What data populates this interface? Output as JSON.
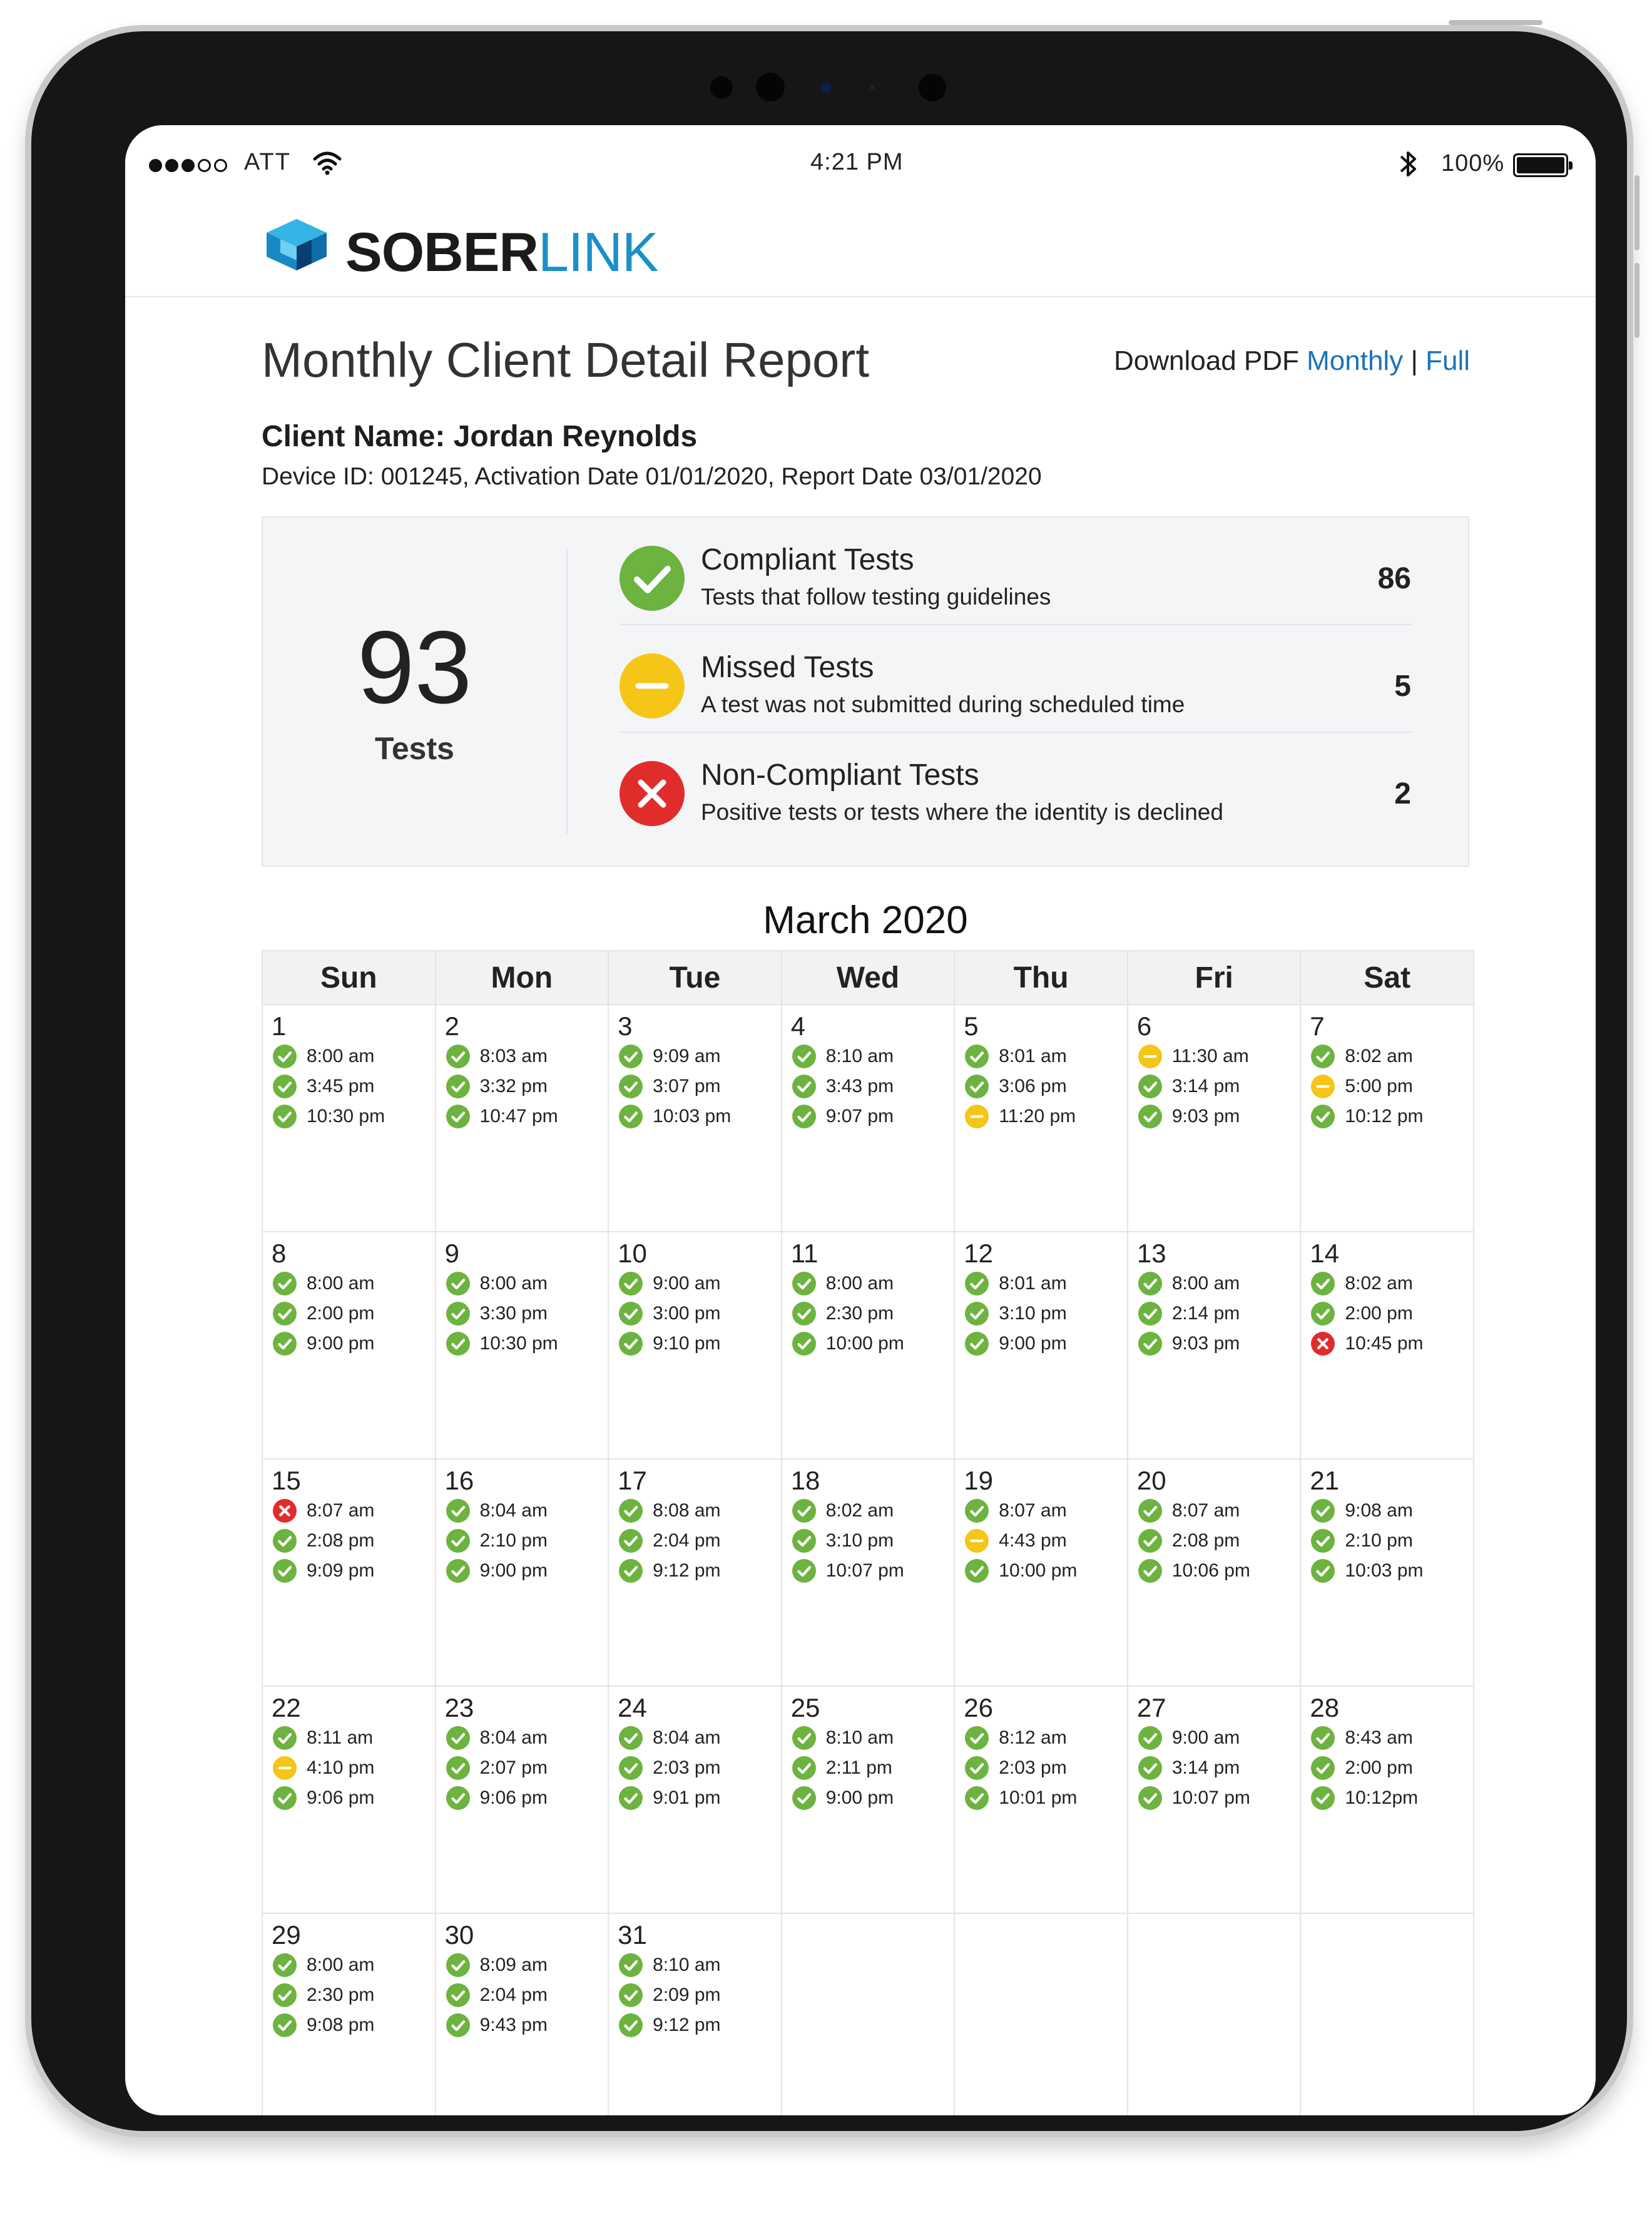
{
  "status_bar": {
    "carrier": "ATT",
    "time": "4:21 PM",
    "battery": "100%"
  },
  "header": {
    "logo_primary": "SOBER",
    "logo_secondary": "LINK"
  },
  "report": {
    "title": "Monthly Client Detail Report",
    "download_label": "Download PDF",
    "download_monthly": "Monthly",
    "download_separator": "|",
    "download_full": "Full",
    "client_name": "Client Name: Jordan Reynolds",
    "device_line": "Device ID: 001245, Activation Date 01/01/2020, Report Date 03/01/2020"
  },
  "summary": {
    "total": "93",
    "total_label": "Tests",
    "rows": [
      {
        "status": "compliant",
        "title": "Compliant Tests",
        "subtitle": "Tests that follow testing guidelines",
        "count": "86"
      },
      {
        "status": "missed",
        "title": "Missed Tests",
        "subtitle": "A test was not submitted during scheduled time",
        "count": "5"
      },
      {
        "status": "noncompliant",
        "title": "Non-Compliant Tests",
        "subtitle": "Positive tests or tests where the identity is declined",
        "count": "2"
      }
    ]
  },
  "colors": {
    "compliant": "#6db33f",
    "missed": "#f5c518",
    "noncompliant": "#e12c2c",
    "brand_blue": "#1a8fc9"
  },
  "calendar": {
    "title": "March 2020",
    "weekdays": [
      "Sun",
      "Mon",
      "Tue",
      "Wed",
      "Thu",
      "Fri",
      "Sat"
    ],
    "days": [
      {
        "day": "1",
        "tests": [
          {
            "time": "8:00 am",
            "status": "compliant"
          },
          {
            "time": "3:45 pm",
            "status": "compliant"
          },
          {
            "time": "10:30 pm",
            "status": "compliant"
          }
        ]
      },
      {
        "day": "2",
        "tests": [
          {
            "time": "8:03 am",
            "status": "compliant"
          },
          {
            "time": "3:32 pm",
            "status": "compliant"
          },
          {
            "time": "10:47 pm",
            "status": "compliant"
          }
        ]
      },
      {
        "day": "3",
        "tests": [
          {
            "time": "9:09 am",
            "status": "compliant"
          },
          {
            "time": "3:07 pm",
            "status": "compliant"
          },
          {
            "time": "10:03 pm",
            "status": "compliant"
          }
        ]
      },
      {
        "day": "4",
        "tests": [
          {
            "time": "8:10 am",
            "status": "compliant"
          },
          {
            "time": "3:43 pm",
            "status": "compliant"
          },
          {
            "time": "9:07 pm",
            "status": "compliant"
          }
        ]
      },
      {
        "day": "5",
        "tests": [
          {
            "time": "8:01 am",
            "status": "compliant"
          },
          {
            "time": "3:06 pm",
            "status": "compliant"
          },
          {
            "time": "11:20 pm",
            "status": "missed"
          }
        ]
      },
      {
        "day": "6",
        "tests": [
          {
            "time": "11:30 am",
            "status": "missed"
          },
          {
            "time": "3:14 pm",
            "status": "compliant"
          },
          {
            "time": "9:03 pm",
            "status": "compliant"
          }
        ]
      },
      {
        "day": "7",
        "tests": [
          {
            "time": "8:02 am",
            "status": "compliant"
          },
          {
            "time": "5:00 pm",
            "status": "missed"
          },
          {
            "time": "10:12 pm",
            "status": "compliant"
          }
        ]
      },
      {
        "day": "8",
        "tests": [
          {
            "time": "8:00 am",
            "status": "compliant"
          },
          {
            "time": "2:00 pm",
            "status": "compliant"
          },
          {
            "time": "9:00 pm",
            "status": "compliant"
          }
        ]
      },
      {
        "day": "9",
        "tests": [
          {
            "time": "8:00 am",
            "status": "compliant"
          },
          {
            "time": "3:30 pm",
            "status": "compliant"
          },
          {
            "time": "10:30 pm",
            "status": "compliant"
          }
        ]
      },
      {
        "day": "10",
        "tests": [
          {
            "time": "9:00 am",
            "status": "compliant"
          },
          {
            "time": "3:00 pm",
            "status": "compliant"
          },
          {
            "time": "9:10 pm",
            "status": "compliant"
          }
        ]
      },
      {
        "day": "11",
        "tests": [
          {
            "time": "8:00 am",
            "status": "compliant"
          },
          {
            "time": "2:30 pm",
            "status": "compliant"
          },
          {
            "time": "10:00 pm",
            "status": "compliant"
          }
        ]
      },
      {
        "day": "12",
        "tests": [
          {
            "time": "8:01 am",
            "status": "compliant"
          },
          {
            "time": "3:10 pm",
            "status": "compliant"
          },
          {
            "time": "9:00 pm",
            "status": "compliant"
          }
        ]
      },
      {
        "day": "13",
        "tests": [
          {
            "time": "8:00 am",
            "status": "compliant"
          },
          {
            "time": "2:14 pm",
            "status": "compliant"
          },
          {
            "time": "9:03 pm",
            "status": "compliant"
          }
        ]
      },
      {
        "day": "14",
        "tests": [
          {
            "time": "8:02 am",
            "status": "compliant"
          },
          {
            "time": "2:00 pm",
            "status": "compliant"
          },
          {
            "time": "10:45 pm",
            "status": "noncompliant"
          }
        ]
      },
      {
        "day": "15",
        "tests": [
          {
            "time": "8:07 am",
            "status": "noncompliant"
          },
          {
            "time": "2:08 pm",
            "status": "compliant"
          },
          {
            "time": "9:09 pm",
            "status": "compliant"
          }
        ]
      },
      {
        "day": "16",
        "tests": [
          {
            "time": "8:04 am",
            "status": "compliant"
          },
          {
            "time": "2:10 pm",
            "status": "compliant"
          },
          {
            "time": "9:00 pm",
            "status": "compliant"
          }
        ]
      },
      {
        "day": "17",
        "tests": [
          {
            "time": "8:08 am",
            "status": "compliant"
          },
          {
            "time": "2:04 pm",
            "status": "compliant"
          },
          {
            "time": "9:12 pm",
            "status": "compliant"
          }
        ]
      },
      {
        "day": "18",
        "tests": [
          {
            "time": "8:02 am",
            "status": "compliant"
          },
          {
            "time": "3:10 pm",
            "status": "compliant"
          },
          {
            "time": "10:07 pm",
            "status": "compliant"
          }
        ]
      },
      {
        "day": "19",
        "tests": [
          {
            "time": "8:07 am",
            "status": "compliant"
          },
          {
            "time": "4:43 pm",
            "status": "missed"
          },
          {
            "time": "10:00 pm",
            "status": "compliant"
          }
        ]
      },
      {
        "day": "20",
        "tests": [
          {
            "time": "8:07 am",
            "status": "compliant"
          },
          {
            "time": "2:08 pm",
            "status": "compliant"
          },
          {
            "time": "10:06 pm",
            "status": "compliant"
          }
        ]
      },
      {
        "day": "21",
        "tests": [
          {
            "time": "9:08 am",
            "status": "compliant"
          },
          {
            "time": "2:10 pm",
            "status": "compliant"
          },
          {
            "time": "10:03 pm",
            "status": "compliant"
          }
        ]
      },
      {
        "day": "22",
        "tests": [
          {
            "time": "8:11 am",
            "status": "compliant"
          },
          {
            "time": "4:10 pm",
            "status": "missed"
          },
          {
            "time": "9:06 pm",
            "status": "compliant"
          }
        ]
      },
      {
        "day": "23",
        "tests": [
          {
            "time": "8:04 am",
            "status": "compliant"
          },
          {
            "time": "2:07 pm",
            "status": "compliant"
          },
          {
            "time": "9:06 pm",
            "status": "compliant"
          }
        ]
      },
      {
        "day": "24",
        "tests": [
          {
            "time": "8:04 am",
            "status": "compliant"
          },
          {
            "time": "2:03 pm",
            "status": "compliant"
          },
          {
            "time": "9:01 pm",
            "status": "compliant"
          }
        ]
      },
      {
        "day": "25",
        "tests": [
          {
            "time": "8:10 am",
            "status": "compliant"
          },
          {
            "time": "2:11 pm",
            "status": "compliant"
          },
          {
            "time": "9:00 pm",
            "status": "compliant"
          }
        ]
      },
      {
        "day": "26",
        "tests": [
          {
            "time": "8:12 am",
            "status": "compliant"
          },
          {
            "time": "2:03 pm",
            "status": "compliant"
          },
          {
            "time": "10:01 pm",
            "status": "compliant"
          }
        ]
      },
      {
        "day": "27",
        "tests": [
          {
            "time": "9:00 am",
            "status": "compliant"
          },
          {
            "time": "3:14 pm",
            "status": "compliant"
          },
          {
            "time": "10:07 pm",
            "status": "compliant"
          }
        ]
      },
      {
        "day": "28",
        "tests": [
          {
            "time": "8:43 am",
            "status": "compliant"
          },
          {
            "time": "2:00 pm",
            "status": "compliant"
          },
          {
            "time": "10:12pm",
            "status": "compliant"
          }
        ]
      },
      {
        "day": "29",
        "tests": [
          {
            "time": "8:00 am",
            "status": "compliant"
          },
          {
            "time": "2:30 pm",
            "status": "compliant"
          },
          {
            "time": "9:08 pm",
            "status": "compliant"
          }
        ]
      },
      {
        "day": "30",
        "tests": [
          {
            "time": "8:09 am",
            "status": "compliant"
          },
          {
            "time": "2:04 pm",
            "status": "compliant"
          },
          {
            "time": "9:43 pm",
            "status": "compliant"
          }
        ]
      },
      {
        "day": "31",
        "tests": [
          {
            "time": "8:10 am",
            "status": "compliant"
          },
          {
            "time": "2:09 pm",
            "status": "compliant"
          },
          {
            "time": "9:12 pm",
            "status": "compliant"
          }
        ]
      }
    ]
  }
}
